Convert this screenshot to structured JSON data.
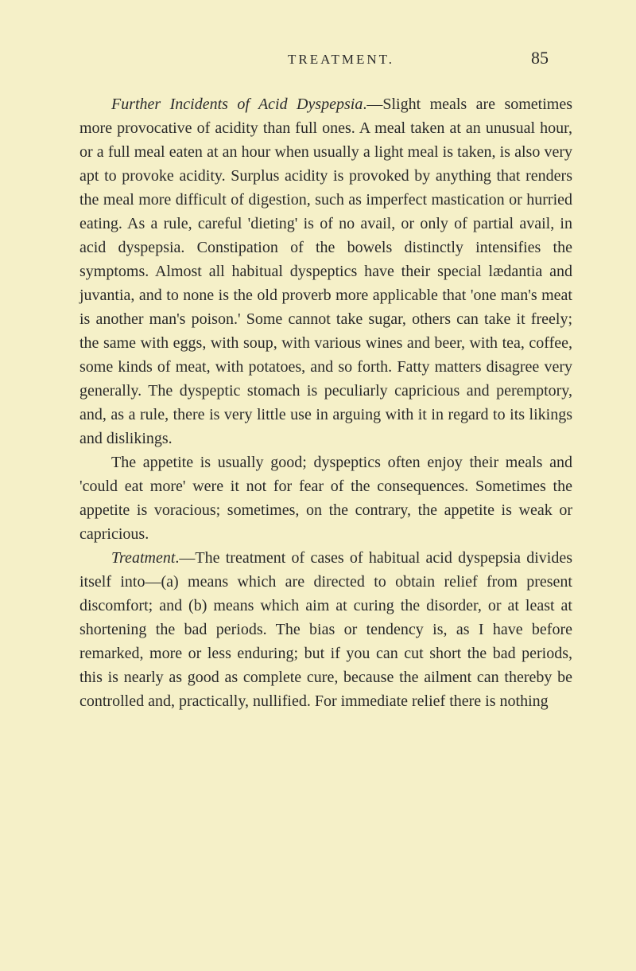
{
  "header": {
    "running_title": "TREATMENT.",
    "page_number": "85"
  },
  "paragraphs": {
    "p1_lead_italic": "Further Incidents of Acid Dyspepsia",
    "p1_body": ".—Slight meals are sometimes more provocative of acidity than full ones. A meal taken at an unusual hour, or a full meal eaten at an hour when usually a light meal is taken, is also very apt to provoke acidity. Surplus acidity is provoked by anything that renders the meal more difficult of digestion, such as imperfect mastication or hurried eating. As a rule, careful 'dieting' is of no avail, or only of partial avail, in acid dyspepsia. Constipation of the bowels distinctly intensifies the symptoms. Almost all habitual dyspeptics have their special lædantia and juvantia, and to none is the old proverb more applicable that 'one man's meat is another man's poison.' Some cannot take sugar, others can take it freely; the same with eggs, with soup, with various wines and beer, with tea, coffee, some kinds of meat, with potatoes, and so forth. Fatty matters disagree very generally. The dyspeptic stomach is peculiarly capricious and peremptory, and, as a rule, there is very little use in arguing with it in regard to its likings and dislikings.",
    "p2_body": "The appetite is usually good; dyspeptics often enjoy their meals and 'could eat more' were it not for fear of the consequences. Sometimes the appetite is voracious; sometimes, on the contrary, the appetite is weak or capricious.",
    "p3_lead_italic": "Treatment",
    "p3_body": ".—The treatment of cases of habitual acid dyspepsia divides itself into—(a) means which are directed to obtain relief from present discomfort; and (b) means which aim at curing the disorder, or at least at shortening the bad periods. The bias or tendency is, as I have before remarked, more or less enduring; but if you can cut short the bad periods, this is nearly as good as complete cure, because the ailment can thereby be controlled and, practically, nullified. For immediate relief there is nothing"
  },
  "styling": {
    "background_color": "#f5f0c8",
    "text_color": "#2a2a2a",
    "body_font_size": 20,
    "header_font_size": 17,
    "page_number_font_size": 22,
    "line_height": 1.5,
    "font_family": "Times New Roman"
  }
}
